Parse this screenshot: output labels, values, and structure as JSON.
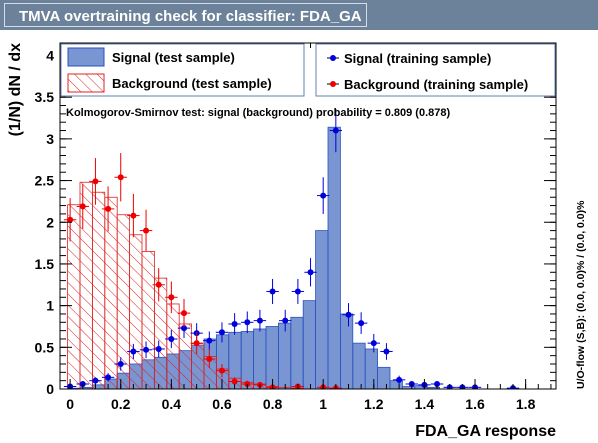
{
  "window": {
    "title": "TMVA overtraining check for classifier: FDA_GA"
  },
  "colors": {
    "title_bar": "#6c829a",
    "signal_fill": "#7996d2",
    "signal_line": "#2a52be",
    "background_hatch": "#e02020",
    "signal_marker": "#0000dd",
    "background_marker": "#ee0000"
  },
  "chart_data": {
    "type": "bar",
    "xlabel": "FDA_GA response",
    "ylabel": "(1/N) dN / dx",
    "right_label": "U/O-flow (S,B): (0.0, 0.0)% / (0.0, 0.0)%",
    "ks_text": "Kolmogorov-Smirnov test: signal (background) probability = 0.809 (0.878)",
    "xlim": [
      -0.04,
      1.92
    ],
    "ylim": [
      0,
      4.15
    ],
    "xticks": [
      "0",
      "0.2",
      "0.4",
      "0.6",
      "0.8",
      "1",
      "1.2",
      "1.4",
      "1.6",
      "1.8"
    ],
    "xtick_values": [
      0,
      0.2,
      0.4,
      0.6,
      0.8,
      1.0,
      1.2,
      1.4,
      1.6,
      1.8
    ],
    "yticks": [
      "0",
      "0.5",
      "1",
      "1.5",
      "2",
      "2.5",
      "3",
      "3.5",
      "4"
    ],
    "ytick_values": [
      0,
      0.5,
      1,
      1.5,
      2,
      2.5,
      3,
      3.5,
      4
    ],
    "bin_edges": [
      -0.01,
      0.039,
      0.088,
      0.137,
      0.186,
      0.235,
      0.284,
      0.333,
      0.382,
      0.431,
      0.48,
      0.529,
      0.578,
      0.627,
      0.676,
      0.725,
      0.774,
      0.823,
      0.872,
      0.921,
      0.97,
      1.019,
      1.068,
      1.117,
      1.166,
      1.215,
      1.264,
      1.313,
      1.362,
      1.411,
      1.46,
      1.509,
      1.558,
      1.607,
      1.656,
      1.705,
      1.754,
      1.803,
      1.852
    ],
    "legend": {
      "signal_test": "Signal (test sample)",
      "background_test": "Background (test sample)",
      "signal_train": "Signal (training sample)",
      "background_train": "Background (training sample)"
    },
    "series": [
      {
        "name": "Signal (test sample)",
        "style": "filled-histogram",
        "values": [
          0.01,
          0.02,
          0.05,
          0.12,
          0.19,
          0.3,
          0.35,
          0.38,
          0.42,
          0.46,
          0.52,
          0.6,
          0.65,
          0.68,
          0.69,
          0.72,
          0.75,
          0.79,
          0.86,
          1.06,
          1.9,
          3.14,
          0.9,
          0.55,
          0.48,
          0.26,
          0.1,
          0.03,
          0.04,
          0.02,
          0.0,
          0.0,
          0.0,
          0.0,
          0.0,
          0.0,
          0.0,
          0.0
        ]
      },
      {
        "name": "Background (test sample)",
        "style": "hatched-histogram",
        "values": [
          2.21,
          2.48,
          2.36,
          2.3,
          2.09,
          1.85,
          1.65,
          1.33,
          1.02,
          0.78,
          0.54,
          0.39,
          0.24,
          0.13,
          0.08,
          0.06,
          0.03,
          0.02,
          0.01,
          0.0,
          0.0,
          0.0,
          0.0,
          0.0,
          0.0,
          0.0,
          0.0,
          0.0,
          0.0,
          0.0,
          0.0,
          0.0,
          0.0,
          0.0,
          0.0,
          0.0,
          0.0,
          0.0
        ]
      },
      {
        "name": "Signal (training sample)",
        "style": "markers",
        "points": [
          {
            "x": 0.0,
            "y": 0.03,
            "e": 0.02
          },
          {
            "x": 0.05,
            "y": 0.06,
            "e": 0.03
          },
          {
            "x": 0.1,
            "y": 0.1,
            "e": 0.04
          },
          {
            "x": 0.15,
            "y": 0.14,
            "e": 0.05
          },
          {
            "x": 0.2,
            "y": 0.3,
            "e": 0.08
          },
          {
            "x": 0.25,
            "y": 0.45,
            "e": 0.09
          },
          {
            "x": 0.3,
            "y": 0.47,
            "e": 0.1
          },
          {
            "x": 0.35,
            "y": 0.48,
            "e": 0.1
          },
          {
            "x": 0.4,
            "y": 0.6,
            "e": 0.11
          },
          {
            "x": 0.45,
            "y": 0.73,
            "e": 0.12
          },
          {
            "x": 0.5,
            "y": 0.67,
            "e": 0.12
          },
          {
            "x": 0.55,
            "y": 0.58,
            "e": 0.11
          },
          {
            "x": 0.6,
            "y": 0.68,
            "e": 0.12
          },
          {
            "x": 0.65,
            "y": 0.78,
            "e": 0.13
          },
          {
            "x": 0.7,
            "y": 0.8,
            "e": 0.13
          },
          {
            "x": 0.75,
            "y": 0.82,
            "e": 0.13
          },
          {
            "x": 0.8,
            "y": 1.17,
            "e": 0.15
          },
          {
            "x": 0.85,
            "y": 0.82,
            "e": 0.13
          },
          {
            "x": 0.9,
            "y": 1.17,
            "e": 0.15
          },
          {
            "x": 0.95,
            "y": 1.4,
            "e": 0.17
          },
          {
            "x": 1.0,
            "y": 2.32,
            "e": 0.22
          },
          {
            "x": 1.05,
            "y": 3.1,
            "e": 0.26
          },
          {
            "x": 1.1,
            "y": 0.89,
            "e": 0.14
          },
          {
            "x": 1.15,
            "y": 0.79,
            "e": 0.13
          },
          {
            "x": 1.2,
            "y": 0.55,
            "e": 0.11
          },
          {
            "x": 1.25,
            "y": 0.45,
            "e": 0.1
          },
          {
            "x": 1.3,
            "y": 0.11,
            "e": 0.05
          },
          {
            "x": 1.35,
            "y": 0.06,
            "e": 0.03
          },
          {
            "x": 1.4,
            "y": 0.05,
            "e": 0.03
          },
          {
            "x": 1.45,
            "y": 0.06,
            "e": 0.03
          },
          {
            "x": 1.5,
            "y": 0.02,
            "e": 0.02
          },
          {
            "x": 1.55,
            "y": 0.02,
            "e": 0.02
          },
          {
            "x": 1.6,
            "y": 0.02,
            "e": 0.02
          },
          {
            "x": 1.75,
            "y": 0.01,
            "e": 0.01
          }
        ]
      },
      {
        "name": "Background (training sample)",
        "style": "markers",
        "points": [
          {
            "x": 0.0,
            "y": 2.03,
            "e": 0.26
          },
          {
            "x": 0.05,
            "y": 2.19,
            "e": 0.27
          },
          {
            "x": 0.1,
            "y": 2.49,
            "e": 0.28
          },
          {
            "x": 0.15,
            "y": 2.16,
            "e": 0.27
          },
          {
            "x": 0.2,
            "y": 2.54,
            "e": 0.29
          },
          {
            "x": 0.25,
            "y": 2.08,
            "e": 0.26
          },
          {
            "x": 0.3,
            "y": 1.9,
            "e": 0.25
          },
          {
            "x": 0.35,
            "y": 1.25,
            "e": 0.2
          },
          {
            "x": 0.4,
            "y": 1.1,
            "e": 0.19
          },
          {
            "x": 0.45,
            "y": 0.91,
            "e": 0.17
          },
          {
            "x": 0.5,
            "y": 0.55,
            "e": 0.13
          },
          {
            "x": 0.55,
            "y": 0.36,
            "e": 0.11
          },
          {
            "x": 0.6,
            "y": 0.22,
            "e": 0.08
          },
          {
            "x": 0.65,
            "y": 0.09,
            "e": 0.05
          },
          {
            "x": 0.7,
            "y": 0.06,
            "e": 0.04
          },
          {
            "x": 0.75,
            "y": 0.05,
            "e": 0.03
          },
          {
            "x": 0.8,
            "y": 0.02,
            "e": 0.02
          },
          {
            "x": 0.9,
            "y": 0.03,
            "e": 0.02
          },
          {
            "x": 1.0,
            "y": 0.02,
            "e": 0.02
          },
          {
            "x": 1.05,
            "y": 0.01,
            "e": 0.01
          }
        ]
      }
    ]
  }
}
